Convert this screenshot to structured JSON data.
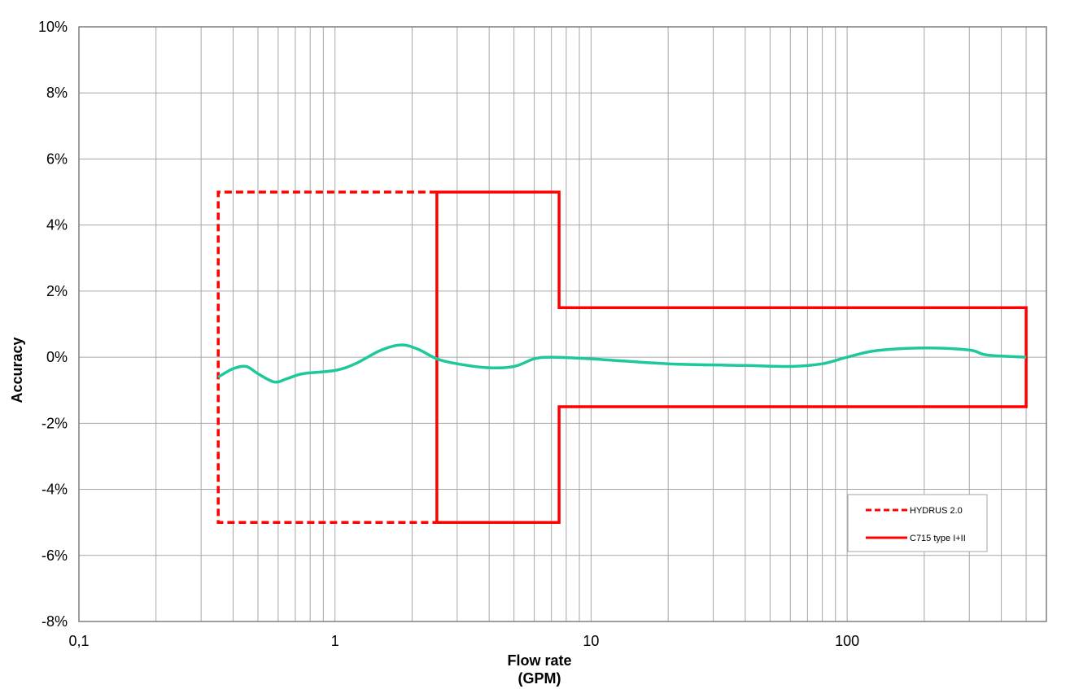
{
  "chart_data": {
    "type": "line",
    "title": "",
    "xlabel": "Flow rate",
    "xlabel_unit": "(GPM)",
    "ylabel": "Accuracy",
    "x_scale": "log",
    "xlim": [
      0.1,
      600
    ],
    "ylim": [
      -8,
      10
    ],
    "grid": true,
    "legend_position": "bottom-right",
    "x_ticks": [
      {
        "value": 0.1,
        "label": "0,1"
      },
      {
        "value": 1,
        "label": "1"
      },
      {
        "value": 10,
        "label": "10"
      },
      {
        "value": 100,
        "label": "100"
      }
    ],
    "y_ticks": [
      {
        "value": 10,
        "label": "10%"
      },
      {
        "value": 8,
        "label": "8%"
      },
      {
        "value": 6,
        "label": "6%"
      },
      {
        "value": 4,
        "label": "4%"
      },
      {
        "value": 2,
        "label": "2%"
      },
      {
        "value": 0,
        "label": "0%"
      },
      {
        "value": -2,
        "label": "-2%"
      },
      {
        "value": -4,
        "label": "-4%"
      },
      {
        "value": -6,
        "label": "-6%"
      },
      {
        "value": -8,
        "label": "-8%"
      }
    ],
    "series": [
      {
        "name": "HYDRUS 2.0",
        "style": "dashed",
        "color": "#ff0000",
        "points": [
          [
            2.5,
            5
          ],
          [
            0.35,
            5
          ],
          [
            0.35,
            -5
          ],
          [
            2.5,
            -5
          ]
        ]
      },
      {
        "name": "C715 type I+II",
        "style": "solid",
        "color": "#ff0000",
        "points": [
          [
            2.5,
            -5
          ],
          [
            2.5,
            5
          ],
          [
            7.5,
            5
          ],
          [
            7.5,
            1.5
          ],
          [
            500,
            1.5
          ],
          [
            500,
            -1.5
          ],
          [
            7.5,
            -1.5
          ],
          [
            7.5,
            -5
          ],
          [
            2.5,
            -5
          ]
        ]
      },
      {
        "style": "solid",
        "color": "#1ec89a",
        "points": [
          [
            0.35,
            -0.6
          ],
          [
            0.4,
            -0.35
          ],
          [
            0.45,
            -0.28
          ],
          [
            0.5,
            -0.5
          ],
          [
            0.58,
            -0.75
          ],
          [
            0.65,
            -0.65
          ],
          [
            0.75,
            -0.5
          ],
          [
            1.0,
            -0.4
          ],
          [
            1.2,
            -0.2
          ],
          [
            1.5,
            0.2
          ],
          [
            1.8,
            0.37
          ],
          [
            2.1,
            0.25
          ],
          [
            2.5,
            -0.05
          ],
          [
            3.0,
            -0.2
          ],
          [
            4.0,
            -0.32
          ],
          [
            5.0,
            -0.28
          ],
          [
            6.0,
            -0.05
          ],
          [
            7.0,
            0.0
          ],
          [
            10,
            -0.05
          ],
          [
            20,
            -0.2
          ],
          [
            40,
            -0.25
          ],
          [
            60,
            -0.28
          ],
          [
            80,
            -0.2
          ],
          [
            100,
            0.0
          ],
          [
            130,
            0.2
          ],
          [
            200,
            0.28
          ],
          [
            300,
            0.22
          ],
          [
            350,
            0.07
          ],
          [
            500,
            0.0
          ]
        ]
      }
    ]
  },
  "legend": {
    "items": [
      {
        "label": "HYDRUS 2.0"
      },
      {
        "label": "C715 type I+II"
      }
    ]
  },
  "colors": {
    "limit_line": "#ff0000",
    "measured_line": "#1ec89a",
    "grid": "#a6a6a6"
  }
}
